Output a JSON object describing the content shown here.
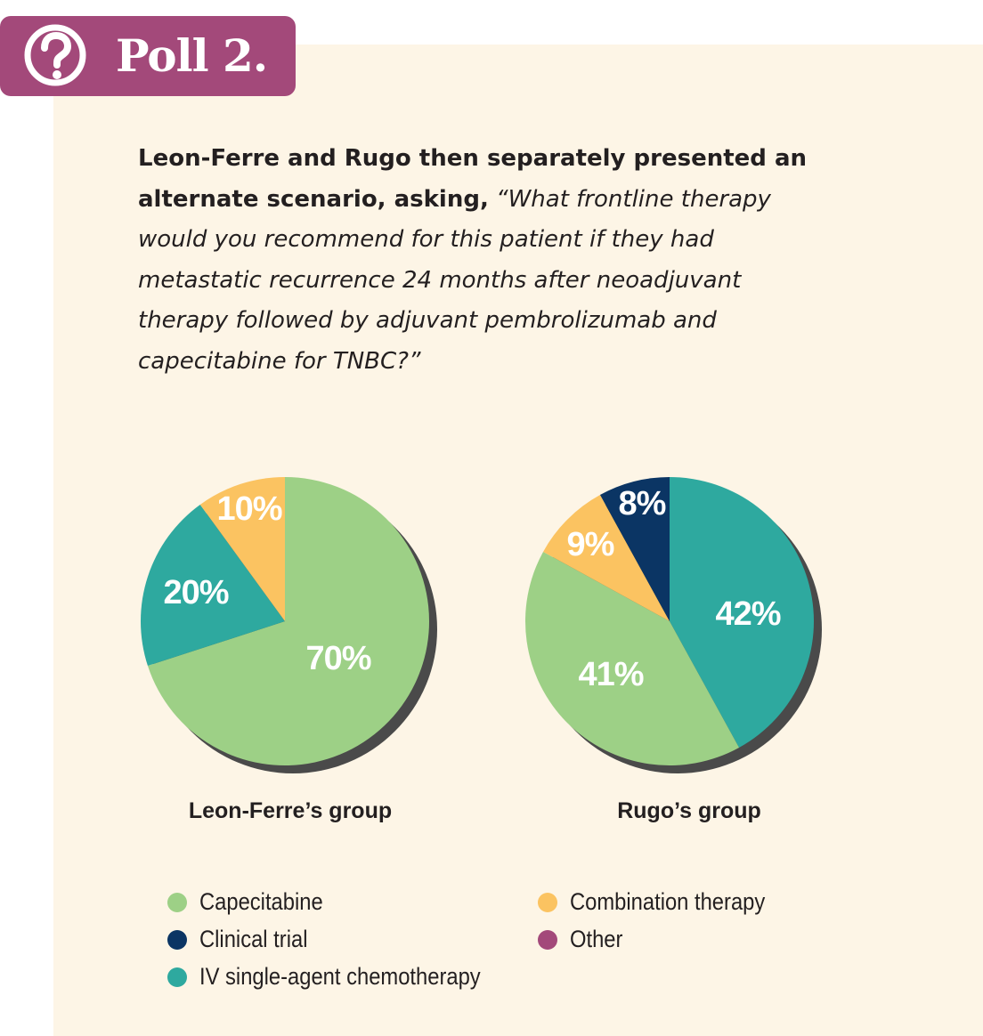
{
  "badge": {
    "title": "Poll 2.",
    "icon": "question-mark-icon"
  },
  "question": {
    "lead": "Leon-Ferre and Rugo then separately presented an alternate scenario, asking,",
    "quote": "“What frontline therapy would you recommend for this patient if they had metastatic recurrence 24 months after neoadjuvant therapy followed by adjuvant pembrolizumab and capecitabine for TNBC?”"
  },
  "colors": {
    "capecitabine": "#9dd086",
    "clinical_trial": "#0b3564",
    "iv_chemo": "#2ea99f",
    "combination": "#fbc361",
    "other": "#a3497a",
    "badge": "#a3497a",
    "background": "#fdf5e6"
  },
  "chart_data": [
    {
      "type": "pie",
      "title": "Leon-Ferre’s group",
      "slices": [
        {
          "label": "Capecitabine",
          "value": 70,
          "display": "70%",
          "color": "#9dd086"
        },
        {
          "label": "IV single-agent chemotherapy",
          "value": 20,
          "display": "20%",
          "color": "#2ea99f"
        },
        {
          "label": "Combination therapy",
          "value": 10,
          "display": "10%",
          "color": "#fbc361"
        }
      ]
    },
    {
      "type": "pie",
      "title": "Rugo’s group",
      "slices": [
        {
          "label": "IV single-agent chemotherapy",
          "value": 42,
          "display": "42%",
          "color": "#2ea99f"
        },
        {
          "label": "Capecitabine",
          "value": 41,
          "display": "41%",
          "color": "#9dd086"
        },
        {
          "label": "Combination therapy",
          "value": 9,
          "display": "9%",
          "color": "#fbc361"
        },
        {
          "label": "Clinical trial",
          "value": 8,
          "display": "8%",
          "color": "#0b3564"
        }
      ]
    }
  ],
  "legend": [
    {
      "label": "Capecitabine",
      "color": "#9dd086"
    },
    {
      "label": "Clinical trial",
      "color": "#0b3564"
    },
    {
      "label": "IV single-agent chemotherapy",
      "color": "#2ea99f"
    },
    {
      "label": "Combination therapy",
      "color": "#fbc361"
    },
    {
      "label": "Other",
      "color": "#a3497a"
    }
  ]
}
